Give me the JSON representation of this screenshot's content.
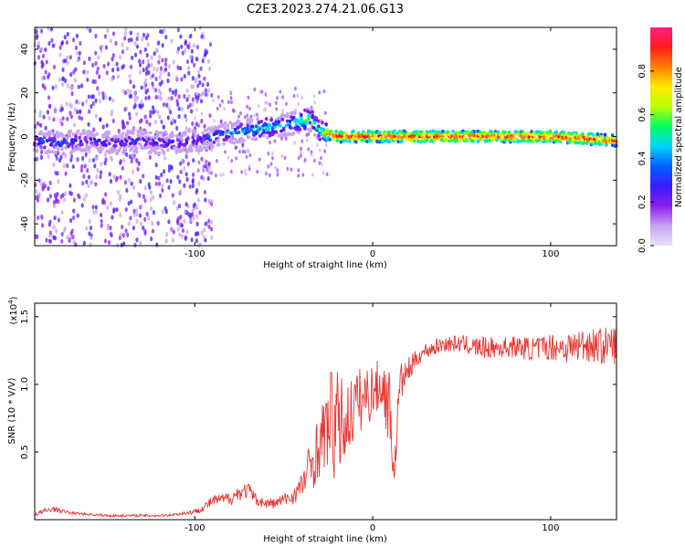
{
  "figure_title": "C2E3.2023.274.21.06.G13",
  "chart_data": [
    {
      "type": "heatmap",
      "title": "C2E3.2023.274.21.06.G13",
      "xlabel": "Height of straight line (km)",
      "ylabel": "Frequency (Hz)",
      "xlim": [
        -190,
        137
      ],
      "ylim": [
        -50,
        50
      ],
      "x_ticks": [
        "-100",
        "0",
        "100"
      ],
      "y_ticks": [
        "-40",
        "-20",
        "0",
        "20",
        "40"
      ],
      "x_tick_values": [
        -100,
        0,
        100
      ],
      "y_tick_values": [
        -40,
        -20,
        0,
        20,
        40
      ],
      "colorbar": {
        "label": "Normalized spectral amplitude",
        "range": [
          0,
          1
        ],
        "ticks": [
          "0.0",
          "0.2",
          "0.4",
          "0.6",
          "0.8"
        ],
        "tick_values": [
          0.0,
          0.2,
          0.4,
          0.6,
          0.8
        ],
        "colors": [
          "#e9e2f8",
          "#c7a4f2",
          "#8a1ff0",
          "#3a1cff",
          "#0060ff",
          "#00d4ff",
          "#00ff60",
          "#b8ff00",
          "#ffea00",
          "#ff8000",
          "#ff1a1a",
          "#ff1f8a"
        ]
      },
      "ridge": {
        "x": [
          -190,
          -175,
          -160,
          -145,
          -130,
          -115,
          -100,
          -85,
          -70,
          -60,
          -50,
          -40,
          -35,
          -30,
          -25,
          -20,
          0,
          20,
          40,
          60,
          80,
          100,
          120,
          137
        ],
        "freq_hz": [
          -2,
          -3,
          -2,
          -3,
          -2,
          -3,
          -2,
          1,
          3,
          4,
          5,
          7,
          8,
          3,
          1,
          0,
          0,
          0,
          0,
          0,
          0,
          0,
          -1,
          -2
        ],
        "amplitude": [
          0.35,
          0.35,
          0.3,
          0.3,
          0.3,
          0.3,
          0.3,
          0.4,
          0.45,
          0.5,
          0.45,
          0.55,
          0.6,
          0.5,
          0.8,
          0.9,
          0.9,
          0.9,
          0.9,
          0.9,
          0.9,
          0.9,
          0.9,
          0.85
        ]
      },
      "scatter_band": {
        "x_range": [
          -190,
          -100
        ],
        "freq_range": [
          -50,
          50
        ],
        "amplitude_range": [
          0.05,
          0.3
        ]
      }
    },
    {
      "type": "line",
      "xlabel": "Height of straight line (km)",
      "ylabel": "SNR (10 * V/V)",
      "y_multiplier": "(x10",
      "y_multiplier_exp": "4",
      "y_multiplier_close": ")",
      "xlim": [
        -190,
        137
      ],
      "ylim": [
        0,
        1.6
      ],
      "x_ticks": [
        "-100",
        "0",
        "100"
      ],
      "y_ticks": [
        "0.5",
        "1.0",
        "1.5"
      ],
      "x_tick_values": [
        -100,
        0,
        100
      ],
      "y_tick_values": [
        0.5,
        1.0,
        1.5
      ],
      "line_color": "#e53935",
      "series": [
        {
          "x": [
            -190,
            -180,
            -170,
            -160,
            -150,
            -140,
            -130,
            -120,
            -110,
            -100,
            -95,
            -90,
            -85,
            -80,
            -75,
            -70,
            -65,
            -60,
            -55,
            -50,
            -45,
            -40,
            -35,
            -30,
            -25,
            -22,
            -20,
            -15,
            -10,
            -5,
            0,
            5,
            10,
            12,
            15,
            20,
            25,
            30,
            40,
            50,
            60,
            70,
            80,
            90,
            100,
            110,
            120,
            130,
            137
          ],
          "values": [
            0.04,
            0.08,
            0.05,
            0.04,
            0.03,
            0.03,
            0.03,
            0.03,
            0.04,
            0.06,
            0.09,
            0.14,
            0.15,
            0.16,
            0.2,
            0.22,
            0.14,
            0.12,
            0.12,
            0.15,
            0.17,
            0.25,
            0.4,
            0.55,
            0.7,
            0.75,
            0.7,
            0.72,
            0.85,
            0.9,
            0.95,
            1.0,
            0.8,
            0.3,
            1.0,
            1.1,
            1.2,
            1.25,
            1.3,
            1.3,
            1.27,
            1.27,
            1.28,
            1.26,
            1.28,
            1.27,
            1.3,
            1.28,
            1.3
          ],
          "noise": [
            0.02,
            0.02,
            0.01,
            0.01,
            0.01,
            0.01,
            0.01,
            0.01,
            0.01,
            0.02,
            0.03,
            0.04,
            0.04,
            0.05,
            0.06,
            0.06,
            0.04,
            0.04,
            0.04,
            0.05,
            0.06,
            0.1,
            0.2,
            0.25,
            0.3,
            0.5,
            0.4,
            0.3,
            0.25,
            0.25,
            0.2,
            0.2,
            0.3,
            0.1,
            0.15,
            0.1,
            0.06,
            0.06,
            0.06,
            0.06,
            0.08,
            0.08,
            0.08,
            0.09,
            0.1,
            0.12,
            0.13,
            0.14,
            0.15
          ]
        }
      ]
    }
  ]
}
